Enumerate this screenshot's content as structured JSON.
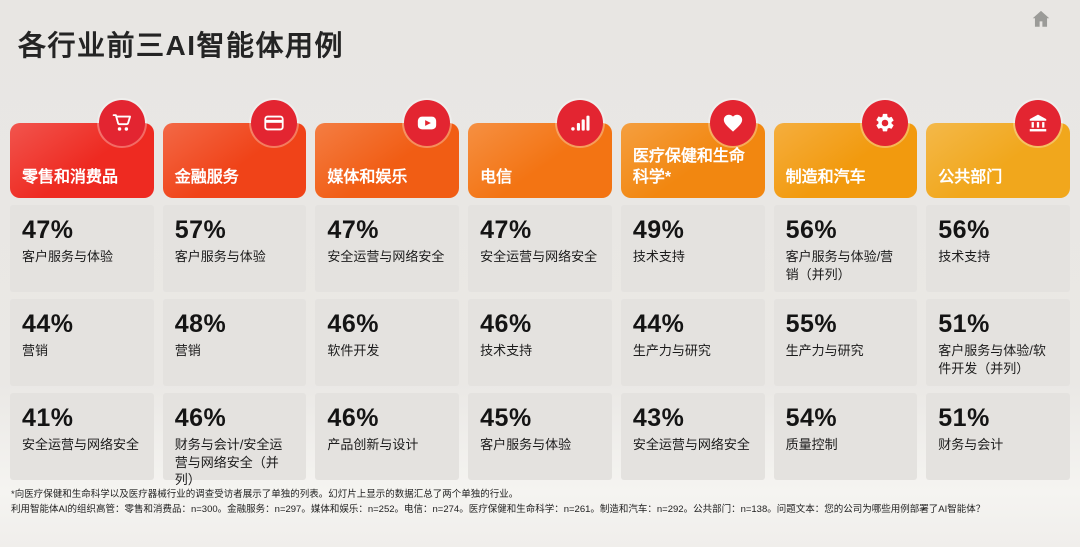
{
  "page": {
    "title": "各行业前三AI智能体用例"
  },
  "header_bar": {
    "home_icon": "home-icon"
  },
  "badge_color": "#e32531",
  "columns": [
    {
      "industry": "零售和消费品",
      "icon": "shopping-cart-icon",
      "header_color": "#ee2a21",
      "use_cases": [
        {
          "pct": "47%",
          "label": "客户服务与体验"
        },
        {
          "pct": "44%",
          "label": "营销"
        },
        {
          "pct": "41%",
          "label": "安全运营与网络安全"
        }
      ]
    },
    {
      "industry": "金融服务",
      "icon": "credit-card-icon",
      "header_color": "#f04318",
      "use_cases": [
        {
          "pct": "57%",
          "label": "客户服务与体验"
        },
        {
          "pct": "48%",
          "label": "营销"
        },
        {
          "pct": "46%",
          "label": "财务与会计/安全运营与网络安全（并列）"
        }
      ]
    },
    {
      "industry": "媒体和娱乐",
      "icon": "play-icon",
      "header_color": "#f15d14",
      "use_cases": [
        {
          "pct": "47%",
          "label": "安全运营与网络安全"
        },
        {
          "pct": "46%",
          "label": "软件开发"
        },
        {
          "pct": "46%",
          "label": "产品创新与设计"
        }
      ]
    },
    {
      "industry": "电信",
      "icon": "bar-chart-icon",
      "header_color": "#f37413",
      "use_cases": [
        {
          "pct": "47%",
          "label": "安全运营与网络安全"
        },
        {
          "pct": "46%",
          "label": "技术支持"
        },
        {
          "pct": "45%",
          "label": "客户服务与体验"
        }
      ]
    },
    {
      "industry": "医疗保健和生命科学*",
      "icon": "heart-icon",
      "header_color": "#f28710",
      "use_cases": [
        {
          "pct": "49%",
          "label": "技术支持"
        },
        {
          "pct": "44%",
          "label": "生产力与研究"
        },
        {
          "pct": "43%",
          "label": "安全运营与网络安全"
        }
      ]
    },
    {
      "industry": "制造和汽车",
      "icon": "gear-icon",
      "header_color": "#f29a0e",
      "use_cases": [
        {
          "pct": "56%",
          "label": "客户服务与体验/营销（并列）"
        },
        {
          "pct": "55%",
          "label": "生产力与研究"
        },
        {
          "pct": "54%",
          "label": "质量控制"
        }
      ]
    },
    {
      "industry": "公共部门",
      "icon": "bank-icon",
      "header_color": "#f1a71c",
      "use_cases": [
        {
          "pct": "56%",
          "label": "技术支持"
        },
        {
          "pct": "51%",
          "label": "客户服务与体验/软件开发（并列）"
        },
        {
          "pct": "51%",
          "label": "财务与会计"
        }
      ]
    }
  ],
  "footnote": {
    "line1": "*向医疗保健和生命科学以及医疗器械行业的调查受访者展示了单独的列表。幻灯片上显示的数据汇总了两个单独的行业。",
    "line2": "利用智能体AI的组织高管：零售和消费品：n=300。金融服务：n=297。媒体和娱乐：n=252。电信：n=274。医疗保健和生命科学：n=261。制造和汽车：n=292。公共部门：n=138。问题文本：您的公司为哪些用例部署了AI智能体？"
  }
}
